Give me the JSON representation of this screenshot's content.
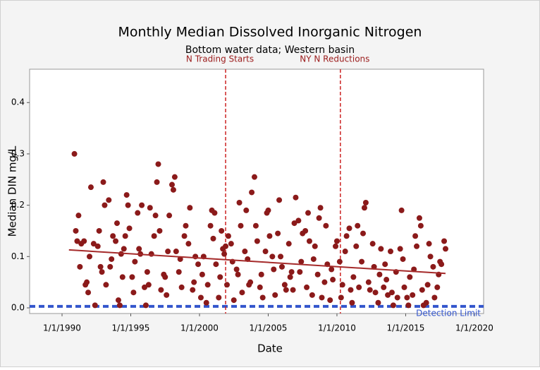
{
  "chart_data": {
    "type": "scatter",
    "title": "Monthly Median Dissolved Inorganic Nitrogen",
    "subtitle": "Bottom water data; Western basin",
    "x_label": "Date",
    "y_label": "Median DIN mg/L",
    "color": "#8b1a1a",
    "xlim": [
      1987.64,
      2020.67
    ],
    "ylim": [
      -0.011,
      0.465
    ],
    "xticks": [
      {
        "value": 1990,
        "label": "1/1/1990"
      },
      {
        "value": 1995,
        "label": "1/1/1995"
      },
      {
        "value": 2000,
        "label": "1/1/2000"
      },
      {
        "value": 2005,
        "label": "1/1/2005"
      },
      {
        "value": 2010,
        "label": "1/1/2010"
      },
      {
        "value": 2015,
        "label": "1/1/2015"
      },
      {
        "value": 2020,
        "label": "1/1/2020"
      }
    ],
    "yticks": [
      {
        "value": 0,
        "label": "0.0"
      },
      0.1,
      0.2,
      0.3,
      0.4
    ],
    "x": [
      1990.9,
      1991.0,
      1991.1,
      1991.2,
      1991.3,
      1991.4,
      1991.6,
      1991.7,
      1991.8,
      1991.9,
      1992.0,
      1992.1,
      1992.3,
      1992.4,
      1992.6,
      1992.7,
      1992.8,
      1992.9,
      1993.0,
      1993.1,
      1993.2,
      1993.4,
      1993.5,
      1993.6,
      1993.7,
      1993.9,
      1994.0,
      1994.1,
      1994.2,
      1994.3,
      1994.4,
      1994.5,
      1994.6,
      1994.7,
      1994.8,
      1994.9,
      1995.1,
      1995.2,
      1995.3,
      1995.5,
      1995.6,
      1995.7,
      1995.8,
      1996.0,
      1996.1,
      1996.2,
      1996.3,
      1996.4,
      1996.5,
      1996.7,
      1996.8,
      1996.9,
      1997.0,
      1997.1,
      1997.2,
      1997.4,
      1997.5,
      1997.6,
      1997.7,
      1997.8,
      1998.0,
      1998.1,
      1998.2,
      1998.3,
      1998.5,
      1998.6,
      1998.7,
      1998.9,
      1999.0,
      1999.2,
      1999.3,
      1999.5,
      1999.6,
      1999.7,
      1999.9,
      2000.1,
      2000.2,
      2000.3,
      2000.5,
      2000.6,
      2000.8,
      2000.9,
      2001.0,
      2001.1,
      2001.2,
      2001.4,
      2001.5,
      2001.6,
      2001.7,
      2001.8,
      2001.9,
      2002.0,
      2002.1,
      2002.3,
      2002.4,
      2002.5,
      2002.7,
      2002.8,
      2002.9,
      2003.0,
      2003.1,
      2003.3,
      2003.4,
      2003.5,
      2003.6,
      2003.7,
      2003.8,
      2004.0,
      2004.1,
      2004.2,
      2004.4,
      2004.5,
      2004.6,
      2004.8,
      2004.9,
      2005.0,
      2005.1,
      2005.3,
      2005.4,
      2005.5,
      2005.7,
      2005.8,
      2005.9,
      2006.0,
      2006.2,
      2006.3,
      2006.5,
      2006.6,
      2006.7,
      2006.8,
      2006.9,
      2007.0,
      2007.2,
      2007.3,
      2007.4,
      2007.5,
      2007.7,
      2007.8,
      2007.9,
      2008.0,
      2008.2,
      2008.3,
      2008.4,
      2008.6,
      2008.7,
      2008.8,
      2008.9,
      2009.1,
      2009.2,
      2009.3,
      2009.5,
      2009.6,
      2009.7,
      2009.9,
      2010.0,
      2010.2,
      2010.3,
      2010.4,
      2010.6,
      2010.7,
      2010.9,
      2011.0,
      2011.1,
      2011.2,
      2011.4,
      2011.5,
      2011.6,
      2011.8,
      2011.9,
      2012.0,
      2012.1,
      2012.3,
      2012.4,
      2012.6,
      2012.7,
      2012.8,
      2013.0,
      2013.1,
      2013.2,
      2013.4,
      2013.5,
      2013.6,
      2013.7,
      2013.9,
      2014.0,
      2014.1,
      2014.3,
      2014.4,
      2014.6,
      2014.7,
      2014.8,
      2014.9,
      2015.1,
      2015.2,
      2015.3,
      2015.5,
      2015.6,
      2015.7,
      2015.8,
      2016.0,
      2016.1,
      2016.2,
      2016.3,
      2016.5,
      2016.6,
      2016.7,
      2016.8,
      2017.0,
      2017.1,
      2017.3,
      2017.4,
      2017.5,
      2017.6,
      2017.8,
      2017.9
    ],
    "values": [
      0.3,
      0.15,
      0.13,
      0.18,
      0.08,
      0.125,
      0.13,
      0.045,
      0.05,
      0.03,
      0.1,
      0.235,
      0.125,
      0.005,
      0.12,
      0.15,
      0.08,
      0.07,
      0.245,
      0.2,
      0.045,
      0.21,
      0.08,
      0.095,
      0.14,
      0.13,
      0.165,
      0.015,
      0.005,
      0.105,
      0.06,
      0.115,
      0.14,
      0.22,
      0.2,
      0.155,
      0.06,
      0.03,
      0.09,
      0.185,
      0.115,
      0.105,
      0.2,
      0.04,
      0.005,
      0.07,
      0.045,
      0.195,
      0.105,
      0.14,
      0.18,
      0.245,
      0.28,
      0.15,
      0.035,
      0.065,
      0.06,
      0.025,
      0.11,
      0.18,
      0.24,
      0.23,
      0.255,
      0.11,
      0.07,
      0.095,
      0.04,
      0.14,
      0.16,
      0.125,
      0.195,
      0.035,
      0.05,
      0.1,
      0.085,
      0.02,
      0.065,
      0.1,
      0.01,
      0.045,
      0.16,
      0.19,
      0.135,
      0.185,
      0.085,
      0.02,
      0.06,
      0.15,
      0.115,
      0.105,
      0.12,
      0.045,
      0.14,
      0.125,
      0.09,
      0.015,
      0.075,
      0.065,
      0.205,
      0.16,
      0.03,
      0.11,
      0.19,
      0.095,
      0.045,
      0.05,
      0.225,
      0.255,
      0.16,
      0.13,
      0.04,
      0.065,
      0.02,
      0.11,
      0.185,
      0.19,
      0.14,
      0.1,
      0.075,
      0.025,
      0.145,
      0.21,
      0.1,
      0.08,
      0.045,
      0.035,
      0.125,
      0.06,
      0.07,
      0.035,
      0.165,
      0.215,
      0.17,
      0.07,
      0.09,
      0.145,
      0.15,
      0.04,
      0.185,
      0.13,
      0.025,
      0.095,
      0.12,
      0.065,
      0.175,
      0.195,
      0.02,
      0.05,
      0.16,
      0.085,
      0.015,
      0.075,
      0.055,
      0.12,
      0.13,
      0.09,
      0.02,
      0.045,
      0.11,
      0.14,
      0.155,
      0.035,
      0.01,
      0.06,
      0.12,
      0.16,
      0.04,
      0.09,
      0.145,
      0.195,
      0.205,
      0.05,
      0.035,
      0.125,
      0.08,
      0.03,
      0.01,
      0.065,
      0.115,
      0.04,
      0.085,
      0.055,
      0.025,
      0.11,
      0.03,
      0.005,
      0.07,
      0.02,
      0.115,
      0.19,
      0.095,
      0.04,
      0.02,
      0.005,
      0.06,
      0.025,
      0.075,
      0.14,
      0.12,
      0.175,
      0.16,
      0.035,
      0.005,
      0.01,
      0.045,
      0.125,
      0.1,
      0.08,
      0.02,
      0.04,
      0.065,
      0.09,
      0.085,
      0.13,
      0.115
    ],
    "trend_line": {
      "color": "#a52a2a",
      "x": [
        1990.5,
        2017.9
      ],
      "y": [
        0.113,
        0.067
      ]
    },
    "vlines": [
      {
        "x": 2001.9,
        "label": "N Trading Starts"
      },
      {
        "x": 2010.25,
        "label": "NY N Reductions"
      }
    ],
    "vline_color": "#cc2222",
    "detection_limit": {
      "y": 0.003,
      "label": "Detection Limit",
      "color": "#3355cc"
    }
  }
}
